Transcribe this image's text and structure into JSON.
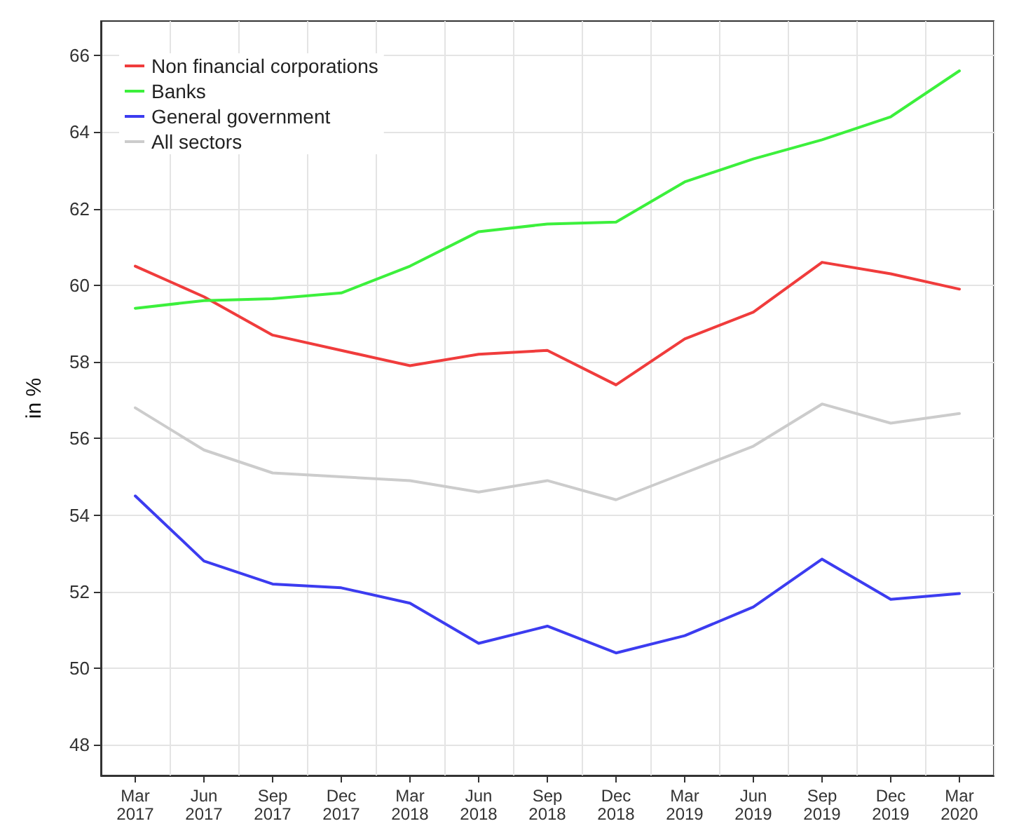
{
  "chart_data": {
    "type": "line",
    "ylabel": "in %",
    "categories": [
      "Mar\n2017",
      "Jun\n2017",
      "Sep\n2017",
      "Dec\n2017",
      "Mar\n2018",
      "Jun\n2018",
      "Sep\n2018",
      "Dec\n2018",
      "Mar\n2019",
      "Jun\n2019",
      "Sep\n2019",
      "Dec\n2019",
      "Mar\n2020"
    ],
    "series": [
      {
        "name": "Non financial corporations",
        "color": "#f03c3c",
        "values": [
          60.5,
          59.7,
          58.7,
          58.3,
          57.9,
          58.2,
          58.3,
          57.4,
          58.6,
          59.3,
          60.6,
          60.3,
          59.9
        ]
      },
      {
        "name": "Banks",
        "color": "#3cf03c",
        "values": [
          59.4,
          59.6,
          59.65,
          59.8,
          60.5,
          61.4,
          61.6,
          61.65,
          62.7,
          63.3,
          63.8,
          64.4,
          65.6
        ]
      },
      {
        "name": "General government",
        "color": "#3c3cf0",
        "values": [
          54.5,
          52.8,
          52.2,
          52.1,
          51.7,
          50.65,
          51.1,
          50.4,
          50.85,
          51.6,
          52.85,
          51.8,
          51.95
        ]
      },
      {
        "name": "All sectors",
        "color": "#cccccc",
        "values": [
          56.8,
          55.7,
          55.1,
          55.0,
          54.9,
          54.6,
          54.9,
          54.4,
          55.1,
          55.8,
          56.9,
          56.4,
          56.65
        ]
      }
    ],
    "ylim": [
      47.2,
      66.9
    ],
    "yticks": [
      48,
      50,
      52,
      54,
      56,
      58,
      60,
      62,
      64,
      66
    ],
    "grid": true,
    "legend": "top left",
    "marker": "none",
    "line_style": "solid"
  }
}
